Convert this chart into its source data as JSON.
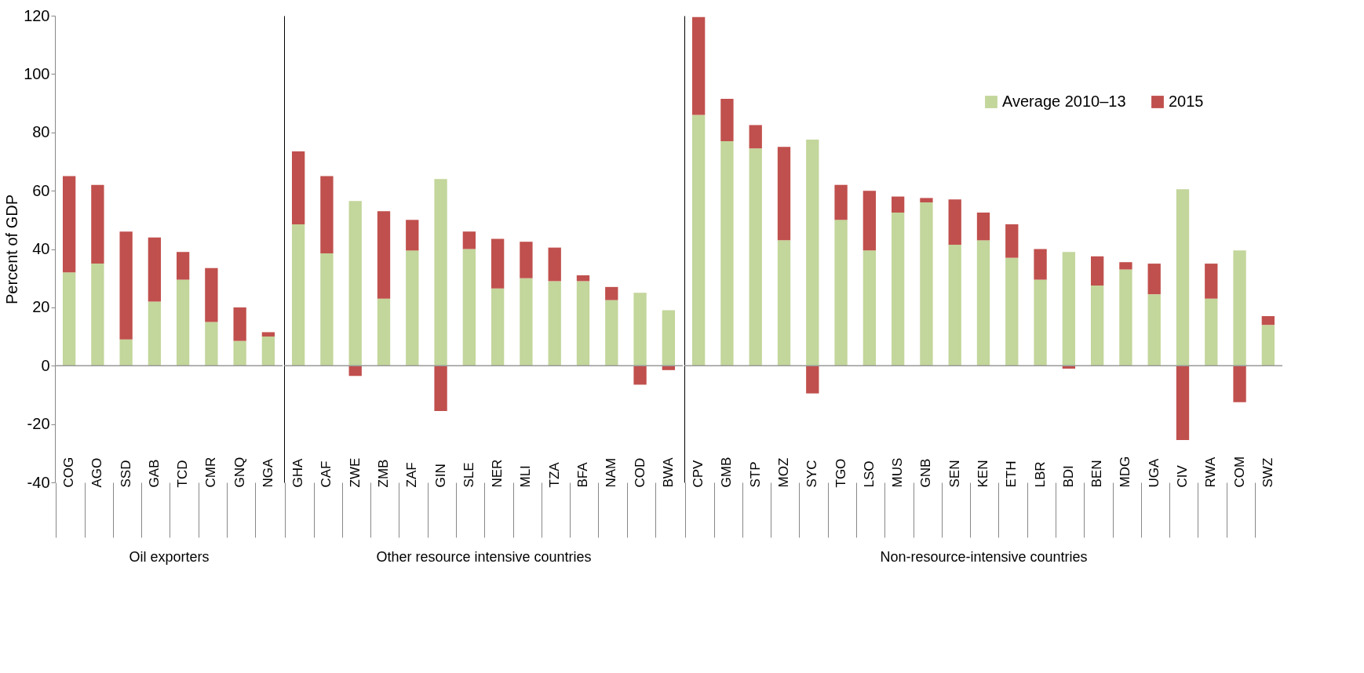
{
  "chart_data": [
    {
      "type": "bar",
      "stacked": true,
      "xlabel": "Oil exporters",
      "ylabel": "Percent of GDP",
      "ylim": [
        -40,
        120
      ],
      "yticks": [
        -40,
        -20,
        0,
        20,
        40,
        60,
        80,
        100,
        120
      ],
      "grid": false,
      "categories": [
        "COG",
        "AGO",
        "SSD",
        "GAB",
        "TCD",
        "CMR",
        "GNQ",
        "NGA"
      ],
      "series": [
        {
          "color": "#c3d69b",
          "values": [
            32,
            35,
            9,
            22,
            29.5,
            15,
            8.5,
            10
          ]
        },
        {
          "color": "#c0504d",
          "values": [
            33,
            27,
            37,
            22,
            9.5,
            18.5,
            11.5,
            1.5
          ]
        }
      ],
      "ref_lines": [
        {
          "axis": "y",
          "value": 0
        }
      ]
    },
    {
      "type": "bar",
      "stacked": true,
      "xlabel": "Other resource intensive countries",
      "ylim": [
        -40,
        120
      ],
      "yticks": [
        -40,
        -20,
        0,
        20,
        40,
        60,
        80,
        100,
        120
      ],
      "grid": false,
      "tick_labels": "x",
      "categories": [
        "GHA",
        "CAF",
        "ZWE",
        "ZMB",
        "ZAF",
        "GIN",
        "SLE",
        "NER",
        "MLI",
        "TZA",
        "BFA",
        "NAM",
        "COD",
        "BWA"
      ],
      "series": [
        {
          "color": "#c3d69b",
          "values": [
            48.5,
            38.5,
            56.5,
            23,
            39.5,
            64,
            40,
            26.5,
            30,
            29,
            29,
            22.5,
            25,
            19
          ]
        },
        {
          "color": "#c0504d",
          "values": [
            25,
            26.5,
            -3.5,
            30,
            10.5,
            -15.5,
            6,
            17,
            12.5,
            11.5,
            2,
            4.5,
            -6.5,
            -1.5
          ]
        }
      ],
      "ref_lines": [
        {
          "axis": "y",
          "value": 0
        }
      ]
    },
    {
      "type": "bar",
      "stacked": true,
      "xlabel": "Non-resource-intensive countries",
      "ylim": [
        -40,
        120
      ],
      "yticks": [
        -40,
        -20,
        0,
        20,
        40,
        60,
        80,
        100,
        120
      ],
      "grid": false,
      "tick_labels": "x",
      "legend": "top right",
      "categories": [
        "CPV",
        "GMB",
        "STP",
        "MOZ",
        "SYC",
        "TGO",
        "LSO",
        "MUS",
        "GNB",
        "SEN",
        "KEN",
        "ETH",
        "LBR",
        "BDI",
        "BEN",
        "MDG",
        "UGA",
        "CIV",
        "RWA",
        "COM",
        "SWZ"
      ],
      "series": [
        {
          "name": "Average 2010–13",
          "color": "#c3d69b",
          "values": [
            86,
            77,
            74.5,
            43,
            77.5,
            50,
            39.5,
            52.5,
            56,
            41.5,
            43,
            37,
            29.5,
            39,
            27.5,
            33,
            24.5,
            60.5,
            23,
            39.5,
            14
          ]
        },
        {
          "name": "2015",
          "color": "#c0504d",
          "values": [
            33.5,
            14.5,
            8,
            32,
            -9.5,
            12,
            20.5,
            5.5,
            1.5,
            15.5,
            9.5,
            11.5,
            10.5,
            -1,
            10,
            2.5,
            10.5,
            -25.5,
            12,
            -12.5,
            3
          ]
        }
      ],
      "ref_lines": [
        {
          "axis": "y",
          "value": 0
        }
      ]
    }
  ]
}
